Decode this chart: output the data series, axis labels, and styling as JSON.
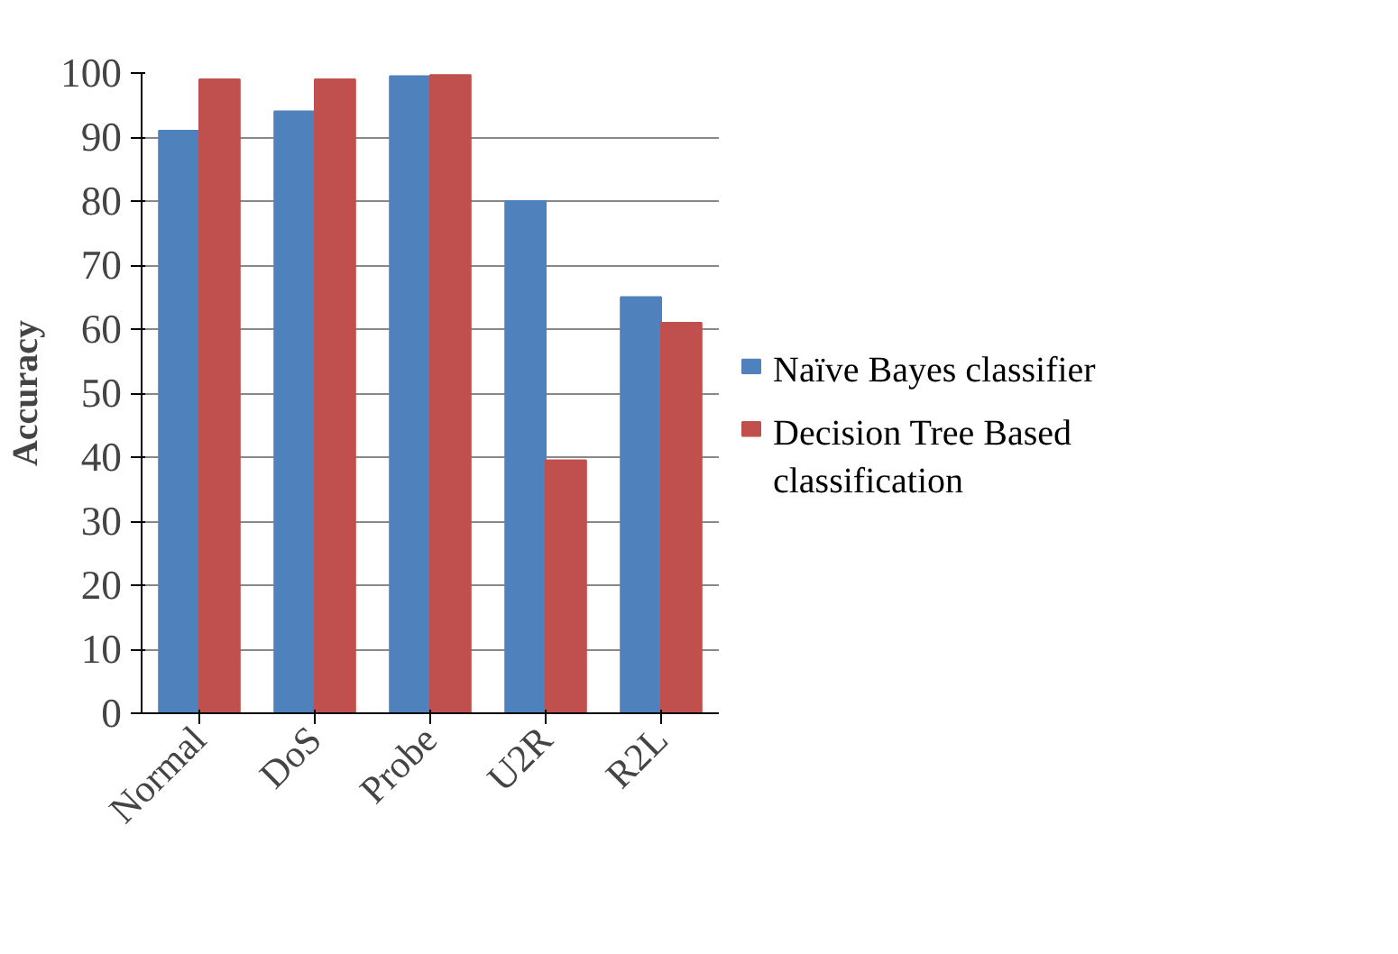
{
  "chart_data": {
    "type": "bar",
    "ylabel": "Accuracy",
    "categories": [
      "Normal",
      "DoS",
      "Probe",
      "U2R",
      "R2L"
    ],
    "series": [
      {
        "name": "Naïve Bayes classifier",
        "color": "#4f81bd",
        "values": [
          91,
          94,
          99.5,
          80,
          65
        ]
      },
      {
        "name": "Decision Tree Based classification",
        "color": "#c0504d",
        "values": [
          99,
          99,
          99.7,
          39.5,
          61
        ]
      }
    ],
    "ylim": [
      0,
      100
    ],
    "yticks": [
      0,
      10,
      20,
      30,
      40,
      50,
      60,
      70,
      80,
      90,
      100
    ],
    "grid": "y",
    "legend": "right"
  }
}
